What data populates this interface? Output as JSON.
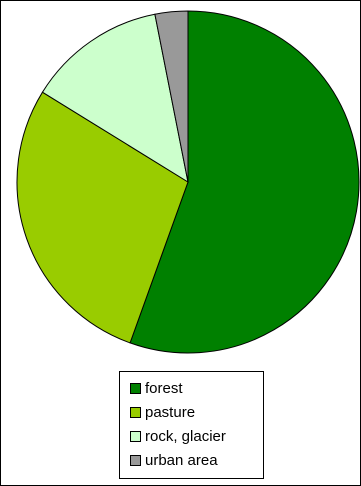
{
  "chart_data": {
    "type": "pie",
    "title": "",
    "categories": [
      "forest",
      "pasture",
      "rock, glacier",
      "urban area"
    ],
    "values": [
      55.5,
      28.3,
      13.1,
      3.1
    ],
    "unit": "%",
    "start_angle_deg": 0,
    "direction": "clockwise",
    "legend_position": "bottom"
  },
  "legend": {
    "items": [
      {
        "label": "forest",
        "color": "#008000"
      },
      {
        "label": "pasture",
        "color": "#99CC00"
      },
      {
        "label": "rock, glacier",
        "color": "#CCFFCC"
      },
      {
        "label": "urban area",
        "color": "#999999"
      }
    ]
  },
  "colors": {
    "slice_outline": "#000000",
    "frame_border": "#000000",
    "background": "#FFFFFF"
  }
}
